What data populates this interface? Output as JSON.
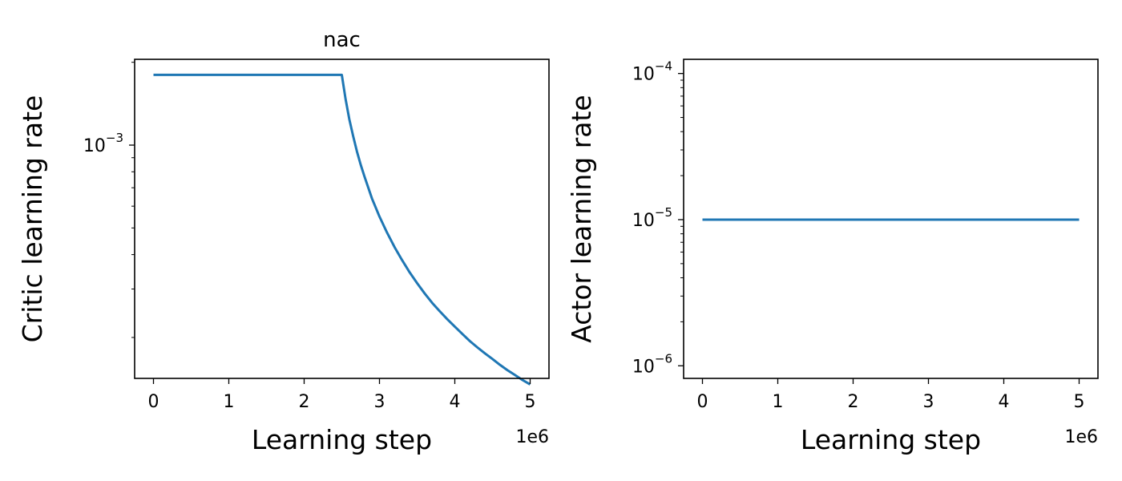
{
  "colors": {
    "series": "#1f77b4"
  },
  "chart_data": [
    {
      "type": "line",
      "title": "nac",
      "xlabel": "Learning step",
      "ylabel": "Critic learning rate",
      "x_offset_label": "1e6",
      "xlim": [
        -0.25,
        5.25
      ],
      "ylim": [
        0.000142,
        0.00205
      ],
      "yscale": "log",
      "grid": false,
      "xticks": [
        {
          "value": 0,
          "label": "0"
        },
        {
          "value": 1,
          "label": "1"
        },
        {
          "value": 2,
          "label": "2"
        },
        {
          "value": 3,
          "label": "3"
        },
        {
          "value": 4,
          "label": "4"
        },
        {
          "value": 5,
          "label": "5"
        }
      ],
      "yticks": [
        {
          "value": 0.001,
          "base": "10",
          "exp": "−3"
        }
      ],
      "yminor": [
        0.0002,
        0.0003,
        0.0004,
        0.0005,
        0.0006,
        0.0007,
        0.0008,
        0.0009,
        0.002
      ],
      "series": [
        {
          "x": [
            0,
            2.5,
            2.55,
            2.6,
            2.65,
            2.7,
            2.75,
            2.8,
            2.9,
            3.0,
            3.1,
            3.2,
            3.3,
            3.4,
            3.5,
            3.6,
            3.7,
            3.8,
            3.9,
            4.0,
            4.1,
            4.2,
            4.3,
            4.4,
            4.5,
            4.6,
            4.7,
            4.8,
            4.9,
            5.0
          ],
          "y": [
            0.0018,
            0.0018,
            0.00147,
            0.00124,
            0.00108,
            0.00095,
            0.00085,
            0.00077,
            0.00064,
            0.00055,
            0.000481,
            0.000426,
            0.000382,
            0.000345,
            0.000315,
            0.000289,
            0.000267,
            0.000249,
            0.000233,
            0.000219,
            0.000206,
            0.000194,
            0.000184,
            0.000175,
            0.000167,
            0.000159,
            0.000152,
            0.000146,
            0.00014,
            0.000135
          ]
        }
      ]
    },
    {
      "type": "line",
      "title": "",
      "xlabel": "Learning step",
      "ylabel": "Actor learning rate",
      "x_offset_label": "1e6",
      "xlim": [
        -0.25,
        5.25
      ],
      "ylim": [
        8.2e-07,
        0.000125
      ],
      "yscale": "log",
      "grid": false,
      "xticks": [
        {
          "value": 0,
          "label": "0"
        },
        {
          "value": 1,
          "label": "1"
        },
        {
          "value": 2,
          "label": "2"
        },
        {
          "value": 3,
          "label": "3"
        },
        {
          "value": 4,
          "label": "4"
        },
        {
          "value": 5,
          "label": "5"
        }
      ],
      "yticks": [
        {
          "value": 1e-06,
          "base": "10",
          "exp": "−6"
        },
        {
          "value": 1e-05,
          "base": "10",
          "exp": "−5"
        },
        {
          "value": 0.0001,
          "base": "10",
          "exp": "−4"
        }
      ],
      "yminor": [
        2e-06,
        3e-06,
        4e-06,
        5e-06,
        6e-06,
        7e-06,
        8e-06,
        9e-06,
        2e-05,
        3e-05,
        4e-05,
        5e-05,
        6e-05,
        7e-05,
        8e-05,
        9e-05
      ],
      "series": [
        {
          "x": [
            0,
            5
          ],
          "y": [
            1e-05,
            1e-05
          ]
        }
      ]
    }
  ]
}
